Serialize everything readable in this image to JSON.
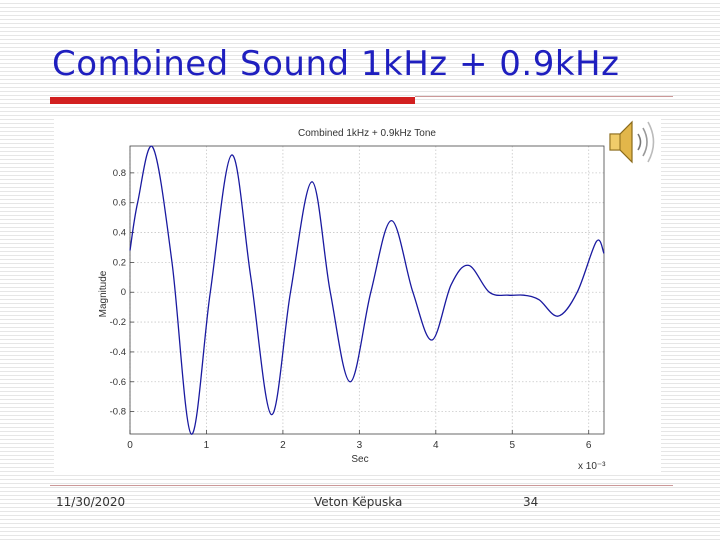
{
  "slide": {
    "title": "Combined Sound 1kHz + 0.9kHz",
    "footer_date": "11/30/2020",
    "footer_author": "Veton Këpuska",
    "footer_page": "34",
    "speaker_icon": "speaker-icon",
    "accent_color": "#d22020",
    "title_color": "#1f1fbf"
  },
  "chart_data": {
    "type": "line",
    "title": "Combined 1kHz + 0.9kHz Tone",
    "xlabel": "Sec",
    "ylabel": "Magnitude",
    "x_multiplier_label": "x 10⁻³",
    "xlim": [
      0,
      6.2
    ],
    "ylim": [
      -0.95,
      0.98
    ],
    "grid": true,
    "xticks": [
      0,
      1,
      2,
      3,
      4,
      5,
      6
    ],
    "xtick_labels": [
      "0",
      "1",
      "2",
      "3",
      "4",
      "5",
      "6"
    ],
    "yticks": [
      0.8,
      0.6,
      0.4,
      0.2,
      0,
      -0.2,
      -0.4,
      -0.6,
      -0.8
    ],
    "ytick_labels": [
      "0.8",
      "0.6",
      "0.4",
      "0.2",
      "0",
      "-0.2",
      "-0.4",
      "-0.6",
      "-0.8"
    ],
    "series": [
      {
        "color": "#1a1aa0",
        "x": [
          0,
          0.1,
          0.3,
          0.55,
          0.8,
          1.05,
          1.33,
          1.58,
          1.85,
          2.1,
          2.38,
          2.62,
          2.88,
          3.15,
          3.42,
          3.7,
          3.95,
          4.2,
          4.43,
          4.7,
          4.95,
          5.15,
          5.35,
          5.6,
          5.85,
          6.1,
          6.2
        ],
        "y": [
          0.28,
          0.6,
          0.97,
          0.2,
          -0.95,
          0.0,
          0.92,
          0.1,
          -0.82,
          0.0,
          0.74,
          0.0,
          -0.6,
          0.0,
          0.48,
          0.0,
          -0.32,
          0.05,
          0.18,
          0.0,
          -0.02,
          -0.02,
          -0.05,
          -0.16,
          0.0,
          0.34,
          0.26
        ]
      }
    ]
  }
}
